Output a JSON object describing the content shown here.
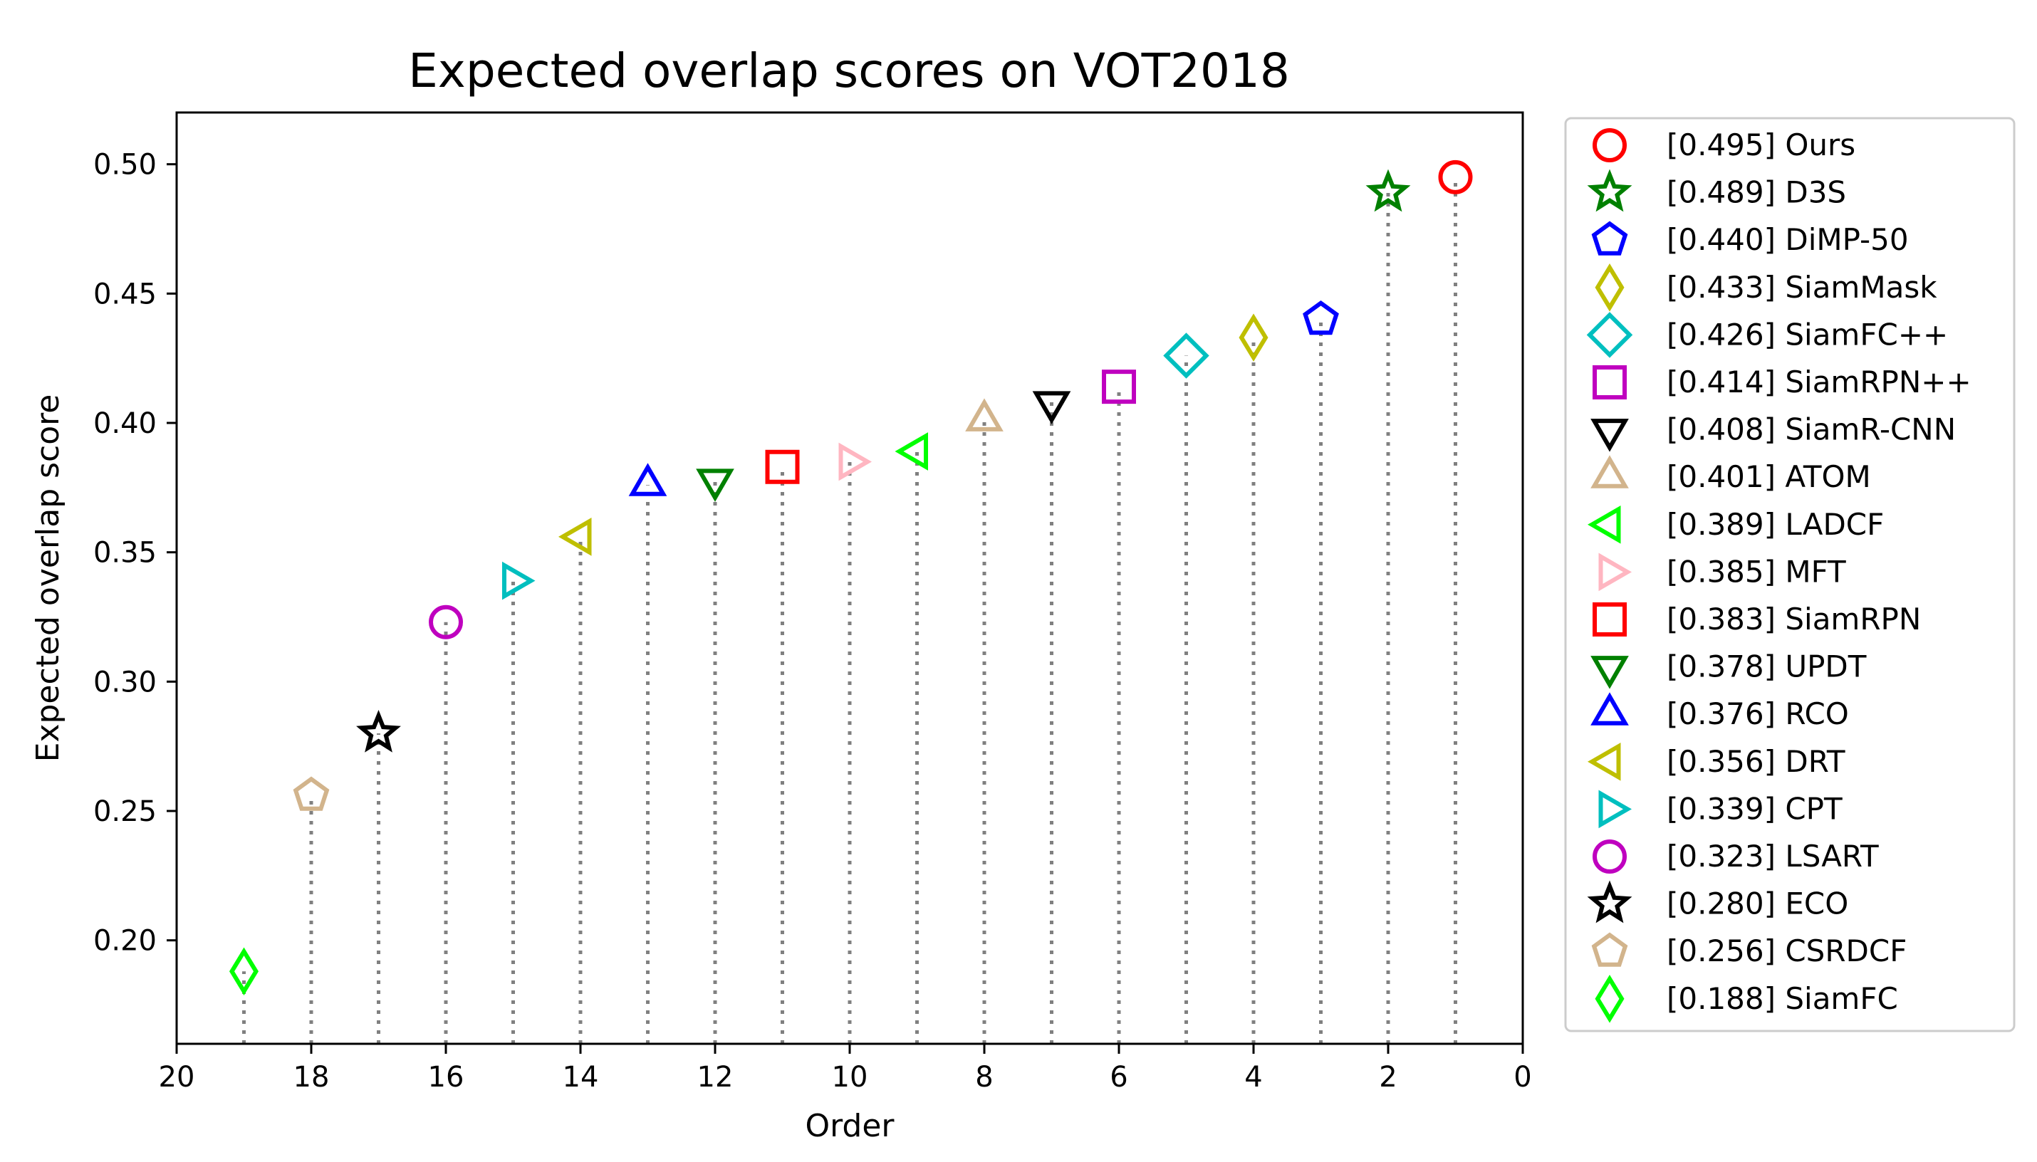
{
  "chart_data": {
    "type": "scatter",
    "title": "Expected overlap scores on VOT2018",
    "xlabel": "Order",
    "ylabel": "Expected overlap score",
    "xlim": [
      20,
      0
    ],
    "ylim": [
      0.16,
      0.52
    ],
    "xticks": [
      {
        "value": 20,
        "label": "20"
      },
      {
        "value": 18,
        "label": "18"
      },
      {
        "value": 16,
        "label": "16"
      },
      {
        "value": 14,
        "label": "14"
      },
      {
        "value": 12,
        "label": "12"
      },
      {
        "value": 10,
        "label": "10"
      },
      {
        "value": 8,
        "label": "8"
      },
      {
        "value": 6,
        "label": "6"
      },
      {
        "value": 4,
        "label": "4"
      },
      {
        "value": 2,
        "label": "2"
      },
      {
        "value": 0,
        "label": "0"
      }
    ],
    "yticks": [
      {
        "value": 0.2,
        "label": "0.20"
      },
      {
        "value": 0.25,
        "label": "0.25"
      },
      {
        "value": 0.3,
        "label": "0.30"
      },
      {
        "value": 0.35,
        "label": "0.35"
      },
      {
        "value": 0.4,
        "label": "0.40"
      },
      {
        "value": 0.45,
        "label": "0.45"
      },
      {
        "value": 0.5,
        "label": "0.50"
      }
    ],
    "grid": false,
    "legend_position": "outside-right",
    "series": [
      {
        "name": "Ours",
        "order": 1,
        "score": 0.495,
        "label": "[0.495] Ours",
        "marker": "circle",
        "color": "#ff0000"
      },
      {
        "name": "D3S",
        "order": 2,
        "score": 0.489,
        "label": "[0.489] D3S",
        "marker": "star",
        "color": "#008000"
      },
      {
        "name": "DiMP-50",
        "order": 3,
        "score": 0.44,
        "label": "[0.440] DiMP-50",
        "marker": "pentagon",
        "color": "#0000ff"
      },
      {
        "name": "SiamMask",
        "order": 4,
        "score": 0.433,
        "label": "[0.433] SiamMask",
        "marker": "thin-diamond",
        "color": "#bfbf00"
      },
      {
        "name": "SiamFC++",
        "order": 5,
        "score": 0.426,
        "label": "[0.426] SiamFC++",
        "marker": "diamond",
        "color": "#00bfbf"
      },
      {
        "name": "SiamRPN++",
        "order": 6,
        "score": 0.414,
        "label": "[0.414] SiamRPN++",
        "marker": "square",
        "color": "#bf00bf"
      },
      {
        "name": "SiamR-CNN",
        "order": 7,
        "score": 0.408,
        "label": "[0.408] SiamR-CNN",
        "marker": "triangle-down",
        "color": "#000000"
      },
      {
        "name": "ATOM",
        "order": 8,
        "score": 0.401,
        "label": "[0.401] ATOM",
        "marker": "triangle-up",
        "color": "#d2b48c"
      },
      {
        "name": "LADCF",
        "order": 9,
        "score": 0.389,
        "label": "[0.389] LADCF",
        "marker": "triangle-left",
        "color": "#00ff00"
      },
      {
        "name": "MFT",
        "order": 10,
        "score": 0.385,
        "label": "[0.385] MFT",
        "marker": "triangle-right",
        "color": "#ffb6c1"
      },
      {
        "name": "SiamRPN",
        "order": 11,
        "score": 0.383,
        "label": "[0.383] SiamRPN",
        "marker": "square",
        "color": "#ff0000"
      },
      {
        "name": "UPDT",
        "order": 12,
        "score": 0.378,
        "label": "[0.378] UPDT",
        "marker": "triangle-down",
        "color": "#008000"
      },
      {
        "name": "RCO",
        "order": 13,
        "score": 0.376,
        "label": "[0.376] RCO",
        "marker": "triangle-up",
        "color": "#0000ff"
      },
      {
        "name": "DRT",
        "order": 14,
        "score": 0.356,
        "label": "[0.356] DRT",
        "marker": "triangle-left",
        "color": "#bfbf00"
      },
      {
        "name": "CPT",
        "order": 15,
        "score": 0.339,
        "label": "[0.339] CPT",
        "marker": "triangle-right",
        "color": "#00bfbf"
      },
      {
        "name": "LSART",
        "order": 16,
        "score": 0.323,
        "label": "[0.323] LSART",
        "marker": "circle",
        "color": "#bf00bf"
      },
      {
        "name": "ECO",
        "order": 17,
        "score": 0.28,
        "label": "[0.280] ECO",
        "marker": "star",
        "color": "#000000"
      },
      {
        "name": "CSRDCF",
        "order": 18,
        "score": 0.256,
        "label": "[0.256] CSRDCF",
        "marker": "pentagon",
        "color": "#d2b48c"
      },
      {
        "name": "SiamFC",
        "order": 19,
        "score": 0.188,
        "label": "[0.188] SiamFC",
        "marker": "thin-diamond",
        "color": "#00ff00"
      }
    ]
  }
}
